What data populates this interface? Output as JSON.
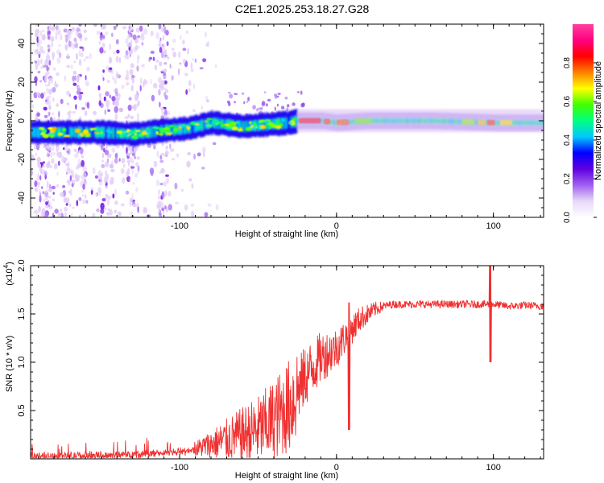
{
  "title": "C2E1.2025.253.18.27.G28",
  "chart_data": [
    {
      "type": "heatmap",
      "title": "C2E1.2025.253.18.27.G28",
      "xlabel": "Height of straight line (km)",
      "ylabel": "Frequency (Hz)",
      "xlim": [
        -195,
        132
      ],
      "ylim": [
        -50,
        50
      ],
      "xticks": [
        -100,
        0,
        100
      ],
      "xtick_labels": [
        "-100",
        "0",
        "100"
      ],
      "yticks": [
        -40,
        -20,
        0,
        20,
        40
      ],
      "ytick_labels": [
        "-40",
        "-20",
        "0",
        "20",
        "40"
      ],
      "colorbar": {
        "label": "Normalized spectral amplitude",
        "range": [
          0,
          1
        ],
        "ticks": [
          0,
          0.2,
          0.4,
          0.6,
          0.8
        ],
        "tick_labels": [
          "0.0",
          "0.2",
          "0.4",
          "0.6",
          "0.8"
        ],
        "colors": [
          "#ffffff",
          "#e8d8f8",
          "#a060f0",
          "#6000e0",
          "#0000ff",
          "#00c8ff",
          "#00ff80",
          "#40ff00",
          "#ffff00",
          "#ff8000",
          "#ff0000",
          "#ff0080",
          "#ff40a0"
        ]
      },
      "ridge": {
        "x": [
          -195,
          -170,
          -150,
          -130,
          -110,
          -95,
          -80,
          -60,
          -45,
          -30,
          -25,
          -20,
          -10,
          0,
          20,
          60,
          100,
          132
        ],
        "freq": [
          -6,
          -6,
          -6,
          -7,
          -5,
          -4,
          -1,
          -3,
          -2,
          -1,
          0,
          0,
          0,
          -1,
          0,
          0,
          -1,
          -1
        ]
      }
    },
    {
      "type": "line",
      "xlabel": "Height of straight line (km)",
      "ylabel": "SNR (10 * v/v)",
      "ylabel_multiplier": "(x10^4)",
      "multiplier_text": "(x10",
      "multiplier_exp": "4",
      "multiplier_close": ")",
      "xlim": [
        -195,
        132
      ],
      "ylim": [
        0,
        2.0
      ],
      "xticks": [
        -100,
        0,
        100
      ],
      "xtick_labels": [
        "-100",
        "0",
        "100"
      ],
      "yticks": [
        0.5,
        1.0,
        1.5,
        2.0
      ],
      "ytick_labels": [
        "0.5",
        "1.0",
        "1.5",
        "2.0"
      ],
      "color": "#ff2020",
      "series": [
        {
          "name": "SNR",
          "x": [
            -195,
            -170,
            -140,
            -110,
            -95,
            -80,
            -70,
            -60,
            -50,
            -40,
            -30,
            -25,
            -20,
            -15,
            -10,
            -5,
            0,
            5,
            10,
            15,
            20,
            25,
            30,
            35,
            40,
            60,
            80,
            90,
            96,
            98,
            100,
            110,
            120,
            132
          ],
          "y": [
            0.03,
            0.03,
            0.04,
            0.06,
            0.08,
            0.15,
            0.2,
            0.25,
            0.3,
            0.4,
            0.55,
            0.7,
            0.85,
            0.95,
            1.05,
            1.1,
            1.15,
            1.25,
            1.35,
            1.45,
            1.5,
            1.55,
            1.58,
            1.6,
            1.6,
            1.6,
            1.6,
            1.6,
            1.6,
            1.6,
            1.6,
            1.58,
            1.59,
            1.58
          ]
        }
      ],
      "annotations": [
        {
          "x": 8,
          "y_min": 0.3,
          "y_max": 1.62
        },
        {
          "x": 98,
          "y_min": 1.0,
          "y_max": 2.0
        }
      ]
    }
  ]
}
